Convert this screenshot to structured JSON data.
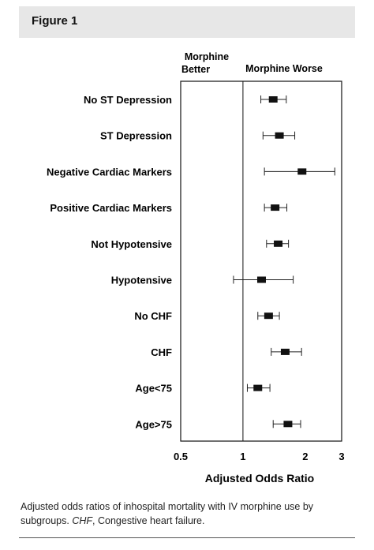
{
  "figure_label": "Figure 1",
  "caption": {
    "lead": "Adjusted odds ratios of inhospital mortality with IV morphine use by subgroups.",
    "abbr": "CHF",
    "abbr_def": ", Congestive heart failure."
  },
  "chart_data": {
    "type": "forest",
    "xlabel": "Adjusted Odds Ratio",
    "xscale": "log",
    "xlim": [
      0.5,
      3
    ],
    "xticks": [
      {
        "value": 0.5,
        "label": "0.5"
      },
      {
        "value": 1,
        "label": "1"
      },
      {
        "value": 2,
        "label": "2"
      },
      {
        "value": 3,
        "label": "3"
      }
    ],
    "reference_line": 1,
    "region_labels": {
      "better": [
        "Morphine",
        "Better"
      ],
      "worse": "Morphine Worse"
    },
    "grid": false,
    "rows": [
      {
        "label": "No ST Depression",
        "or": 1.4,
        "ci": [
          1.22,
          1.62
        ]
      },
      {
        "label": "ST Depression",
        "or": 1.5,
        "ci": [
          1.25,
          1.78
        ]
      },
      {
        "label": "Negative Cardiac Markers",
        "or": 1.93,
        "ci": [
          1.27,
          2.78
        ]
      },
      {
        "label": "Positive Cardiac Markers",
        "or": 1.43,
        "ci": [
          1.27,
          1.63
        ]
      },
      {
        "label": "Not Hypotensive",
        "or": 1.48,
        "ci": [
          1.3,
          1.66
        ]
      },
      {
        "label": "Hypotensive",
        "or": 1.23,
        "ci": [
          0.9,
          1.75
        ]
      },
      {
        "label": "No CHF",
        "or": 1.33,
        "ci": [
          1.18,
          1.5
        ]
      },
      {
        "label": "CHF",
        "or": 1.6,
        "ci": [
          1.37,
          1.92
        ]
      },
      {
        "label": "Age<75",
        "or": 1.18,
        "ci": [
          1.05,
          1.35
        ]
      },
      {
        "label": "Age>75",
        "or": 1.65,
        "ci": [
          1.4,
          1.9
        ]
      }
    ]
  }
}
